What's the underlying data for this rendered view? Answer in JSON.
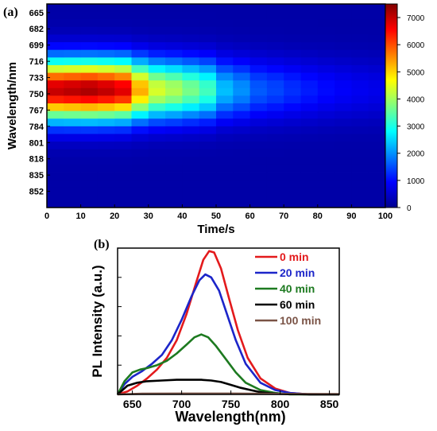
{
  "chart_data": [
    {
      "panel_label": "(a)",
      "type": "heatmap",
      "xlabel": "Time/s",
      "ylabel": "Wavelength/nm",
      "x_ticks": [
        0,
        10,
        20,
        30,
        40,
        50,
        60,
        70,
        80,
        90,
        100
      ],
      "xlim": [
        0,
        100
      ],
      "y_tick_labels": [
        "665",
        "682",
        "699",
        "716",
        "733",
        "750",
        "767",
        "784",
        "801",
        "818",
        "835",
        "852"
      ],
      "ylim": [
        656,
        869
      ],
      "time_steps": [
        0,
        5,
        10,
        15,
        20,
        25,
        30,
        35,
        40,
        45,
        50,
        55,
        60,
        65,
        70,
        75,
        80,
        85,
        90,
        95
      ],
      "wavelength_rows": [
        656,
        664,
        672,
        680,
        688,
        696,
        704,
        712,
        720,
        728,
        736,
        744,
        752,
        760,
        768,
        776,
        784,
        792,
        800,
        808,
        816,
        824,
        832,
        840,
        848,
        856,
        864
      ],
      "peak_intensity": [
        7000,
        7100,
        7200,
        7050,
        6800,
        5300,
        4400,
        4100,
        3700,
        3300,
        2350,
        2000,
        1600,
        1450,
        1280,
        1130,
        1000,
        900,
        820,
        760
      ],
      "peak_wavelength": 746,
      "spectral_width_nm": 44,
      "background": 200,
      "colorbar": {
        "ticks": [
          0,
          1000,
          2000,
          3000,
          4000,
          5000,
          6000,
          7000
        ],
        "range": [
          0,
          7500
        ],
        "colormap": [
          "#00008f",
          "#0000ff",
          "#0080ff",
          "#00ffff",
          "#80ff80",
          "#ffff00",
          "#ff8000",
          "#ff0000",
          "#800000"
        ]
      }
    },
    {
      "panel_label": "(b)",
      "type": "line",
      "xlabel": "Wavelength(nm)",
      "ylabel": "PL Intensity (a.u.)",
      "xlim": [
        635,
        860
      ],
      "x_ticks": [
        650,
        700,
        750,
        800,
        850
      ],
      "ylim": [
        0,
        1.0
      ],
      "y_tick_count": 6,
      "series": [
        {
          "name": "0 min",
          "color": "#e31a1c",
          "x": [
            635,
            645,
            655,
            665,
            675,
            685,
            695,
            705,
            715,
            722,
            728,
            733,
            740,
            748,
            757,
            767,
            780,
            795,
            810,
            830,
            860
          ],
          "y": [
            0.0,
            0.02,
            0.06,
            0.11,
            0.17,
            0.25,
            0.37,
            0.55,
            0.77,
            0.92,
            0.98,
            0.97,
            0.86,
            0.66,
            0.44,
            0.25,
            0.11,
            0.04,
            0.01,
            0.0,
            0.0
          ]
        },
        {
          "name": "20 min",
          "color": "#1c25c9",
          "x": [
            635,
            642,
            650,
            660,
            670,
            680,
            690,
            700,
            710,
            718,
            724,
            730,
            738,
            746,
            755,
            765,
            780,
            795,
            810,
            830,
            860
          ],
          "y": [
            0.0,
            0.07,
            0.12,
            0.16,
            0.21,
            0.27,
            0.37,
            0.51,
            0.67,
            0.78,
            0.82,
            0.8,
            0.71,
            0.55,
            0.37,
            0.21,
            0.08,
            0.03,
            0.01,
            0.0,
            0.0
          ]
        },
        {
          "name": "40 min",
          "color": "#1d7a20",
          "x": [
            635,
            642,
            650,
            658,
            665,
            675,
            685,
            695,
            705,
            713,
            720,
            727,
            735,
            745,
            755,
            765,
            780,
            795,
            810,
            830,
            860
          ],
          "y": [
            0.0,
            0.09,
            0.15,
            0.17,
            0.18,
            0.2,
            0.23,
            0.28,
            0.34,
            0.39,
            0.41,
            0.39,
            0.33,
            0.24,
            0.15,
            0.08,
            0.03,
            0.01,
            0.0,
            0.0,
            0.0
          ]
        },
        {
          "name": "60 min",
          "color": "#000000",
          "x": [
            635,
            645,
            655,
            665,
            680,
            695,
            710,
            720,
            730,
            740,
            750,
            760,
            770,
            780,
            790,
            800,
            815,
            830,
            860
          ],
          "y": [
            0.0,
            0.06,
            0.08,
            0.09,
            0.095,
            0.1,
            0.1,
            0.1,
            0.095,
            0.085,
            0.065,
            0.045,
            0.03,
            0.015,
            0.008,
            0.004,
            0.002,
            0.0,
            0.0
          ]
        },
        {
          "name": "100 min",
          "color": "#7a5346",
          "x": [
            635,
            660,
            700,
            750,
            800,
            860
          ],
          "y": [
            0.0,
            0.005,
            0.006,
            0.006,
            0.004,
            0.002
          ]
        }
      ],
      "legend_position": "top-right"
    }
  ]
}
